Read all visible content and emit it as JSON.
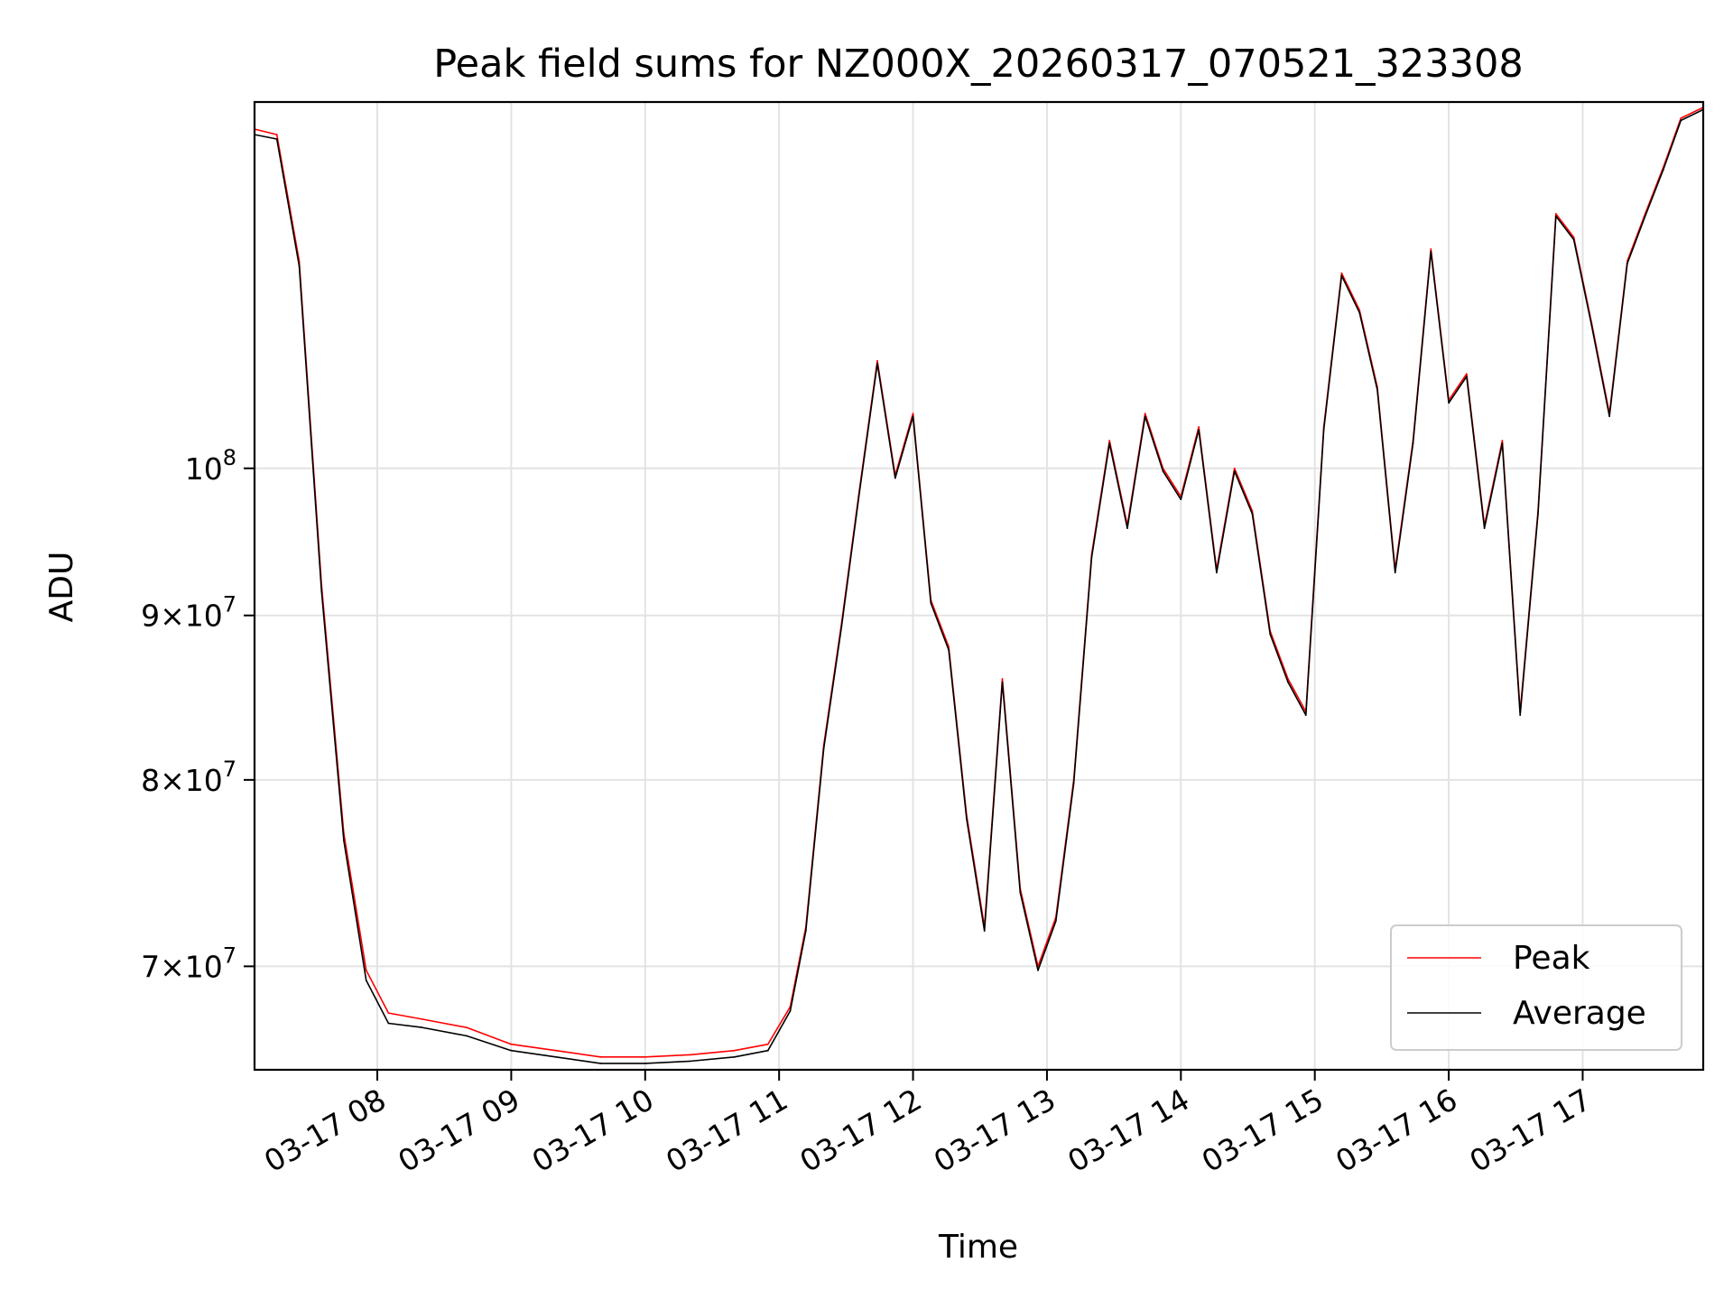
{
  "chart_data": {
    "type": "line",
    "title": "Peak field sums for NZ000X_20260317_070521_323308",
    "xlabel": "Time",
    "ylabel": "ADU",
    "x_start": "2026-03-17 07:05",
    "x_end": "2026-03-17 17:54",
    "xlim": [
      "2026-03-17 07:05",
      "2026-03-17 17:54"
    ],
    "ylim": [
      65000000,
      130000000
    ],
    "y_scale": "log",
    "grid": true,
    "legend_position": "lower right",
    "x_ticks": [
      "03-17 08",
      "03-17 09",
      "03-17 10",
      "03-17 11",
      "03-17 12",
      "03-17 13",
      "03-17 14",
      "03-17 15",
      "03-17 16",
      "03-17 17"
    ],
    "y_ticks": [
      {
        "value": 70000000,
        "mant": "7",
        "exp": "7"
      },
      {
        "value": 80000000,
        "mant": "8",
        "exp": "7"
      },
      {
        "value": 90000000,
        "mant": "9",
        "exp": "7"
      },
      {
        "value": 100000000,
        "mant": "",
        "exp": "8"
      }
    ],
    "x": [
      "07:05",
      "07:15",
      "07:25",
      "07:35",
      "07:45",
      "07:55",
      "08:05",
      "08:20",
      "08:40",
      "09:00",
      "09:20",
      "09:40",
      "10:00",
      "10:20",
      "10:40",
      "10:55",
      "11:05",
      "11:12",
      "11:20",
      "11:28",
      "11:36",
      "11:44",
      "11:52",
      "12:00",
      "12:08",
      "12:16",
      "12:24",
      "12:32",
      "12:40",
      "12:48",
      "12:56",
      "13:04",
      "13:12",
      "13:20",
      "13:28",
      "13:36",
      "13:44",
      "13:52",
      "14:00",
      "14:08",
      "14:16",
      "14:24",
      "14:32",
      "14:40",
      "14:48",
      "14:56",
      "15:04",
      "15:12",
      "15:20",
      "15:28",
      "15:36",
      "15:44",
      "15:52",
      "16:00",
      "16:08",
      "16:16",
      "16:24",
      "16:32",
      "16:40",
      "16:48",
      "16:56",
      "17:04",
      "17:12",
      "17:20",
      "17:28",
      "17:36",
      "17:44",
      "17:54"
    ],
    "series": [
      {
        "name": "Peak",
        "color": "#ff0000",
        "values": [
          127500000,
          127000000,
          116000000,
          92000000,
          77000000,
          69800000,
          67700000,
          67400000,
          67000000,
          66200000,
          65900000,
          65600000,
          65600000,
          65700000,
          65900000,
          66200000,
          68000000,
          72000000,
          82000000,
          89500000,
          98500000,
          108000000,
          99500000,
          104000000,
          91000000,
          88000000,
          78000000,
          72000000,
          86000000,
          74000000,
          70000000,
          72500000,
          80000000,
          94000000,
          102000000,
          96000000,
          104000000,
          100000000,
          98000000,
          103000000,
          93000000,
          100000000,
          97000000,
          89000000,
          86000000,
          84000000,
          103000000,
          115000000,
          112000000,
          106000000,
          93000000,
          102000000,
          117000000,
          105000000,
          107000000,
          96000000,
          102000000,
          84000000,
          97000000,
          120000000,
          118000000,
          111000000,
          104000000,
          116000000,
          120000000,
          124000000,
          128500000,
          129500000
        ]
      },
      {
        "name": "Average",
        "color": "#000000",
        "values": [
          127000000,
          126600000,
          115600000,
          91600000,
          76600000,
          69300000,
          67200000,
          67000000,
          66600000,
          65900000,
          65600000,
          65300000,
          65300000,
          65400000,
          65600000,
          65900000,
          67800000,
          71800000,
          81800000,
          89300000,
          98300000,
          107800000,
          99300000,
          103800000,
          90800000,
          87800000,
          77800000,
          71800000,
          85800000,
          73800000,
          69800000,
          72300000,
          79800000,
          93800000,
          101800000,
          95800000,
          103800000,
          99800000,
          97800000,
          102800000,
          92800000,
          99800000,
          96800000,
          88800000,
          85800000,
          83800000,
          102800000,
          114800000,
          111800000,
          105800000,
          92800000,
          101800000,
          116800000,
          104800000,
          106800000,
          95800000,
          101800000,
          83800000,
          96800000,
          119800000,
          117800000,
          110800000,
          103800000,
          115800000,
          119800000,
          123800000,
          128300000,
          129300000
        ]
      }
    ]
  }
}
